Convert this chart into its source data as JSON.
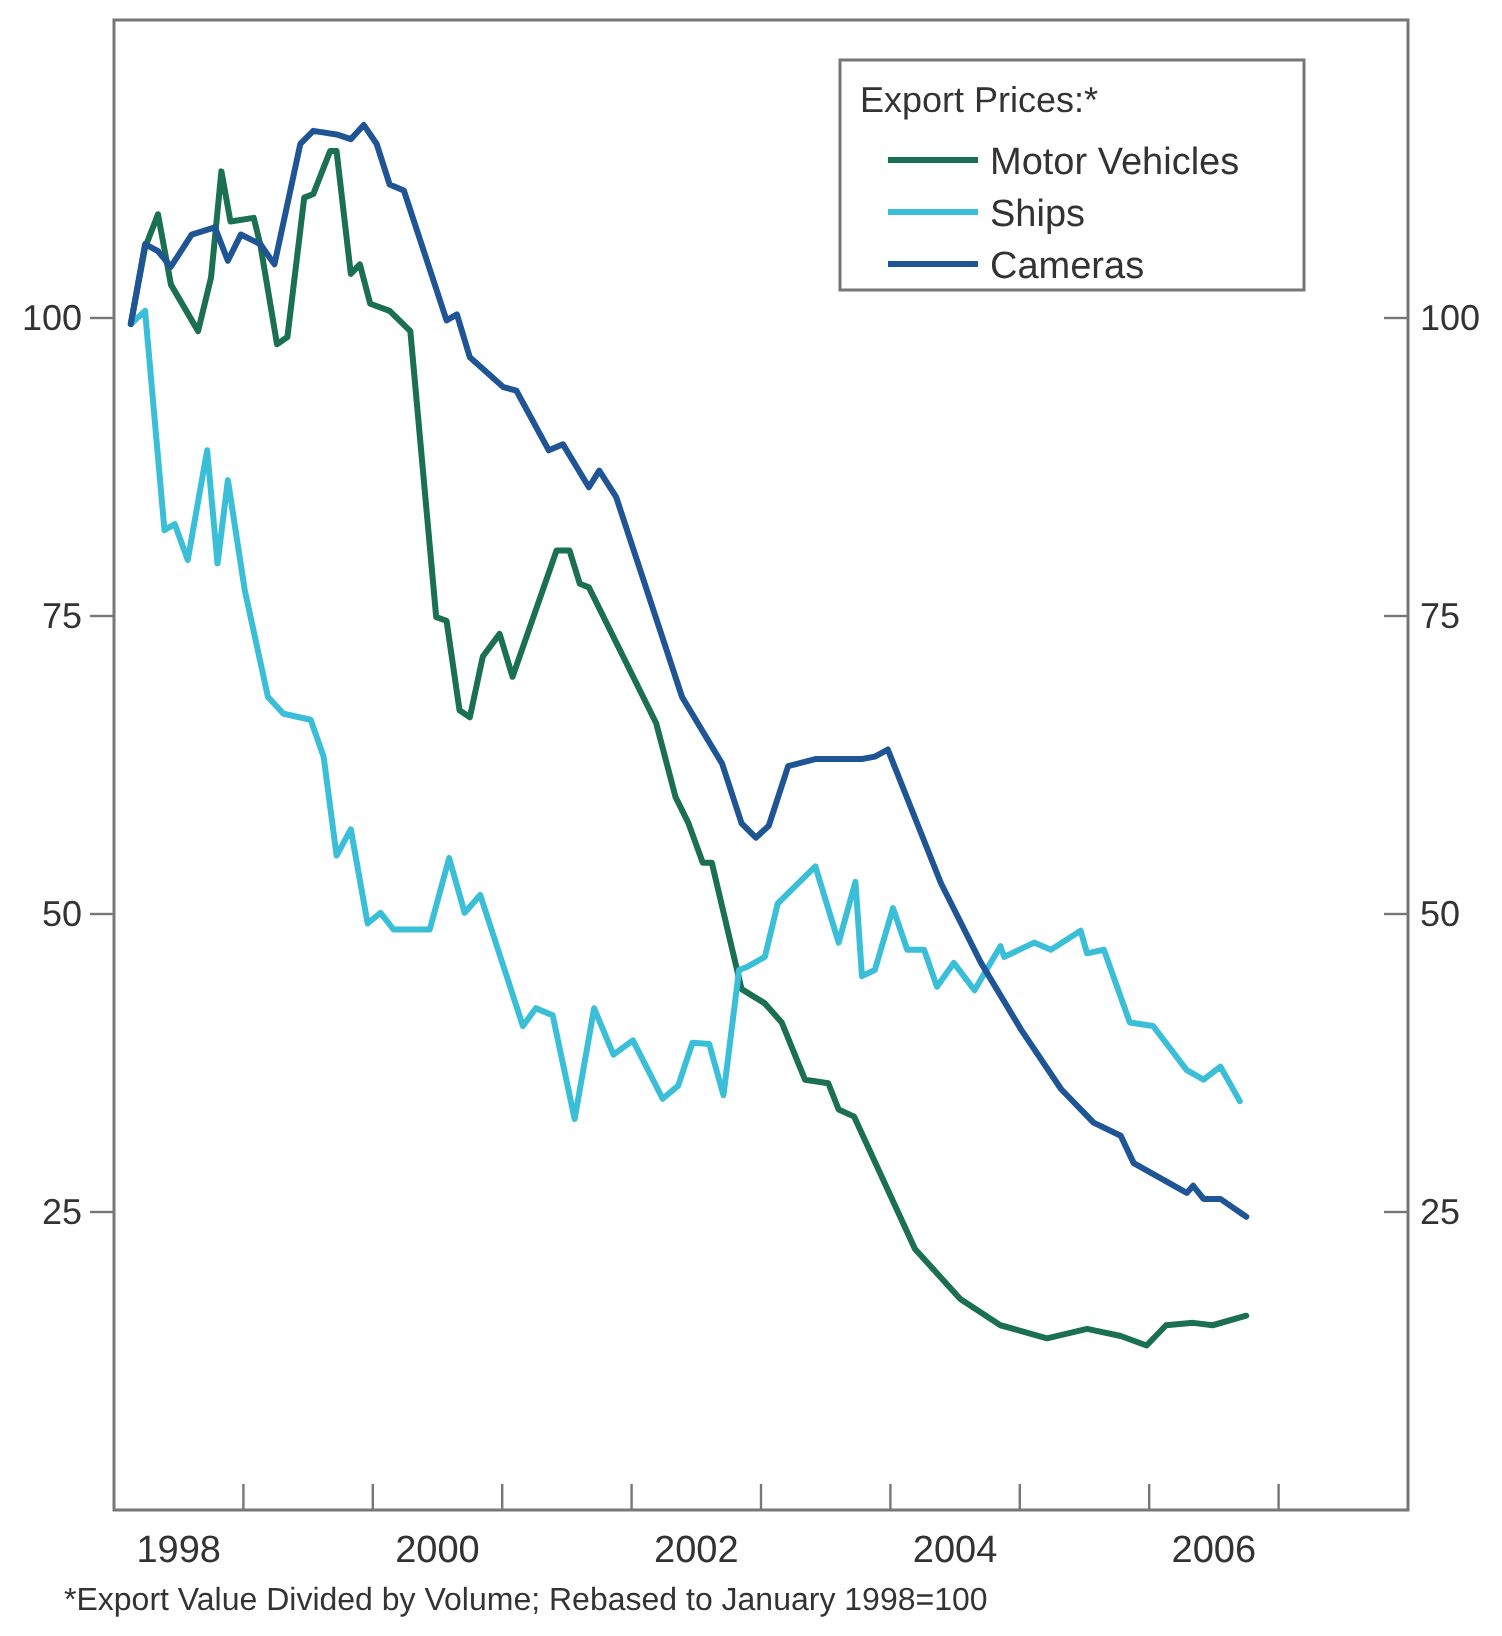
{
  "chart_data": {
    "type": "line",
    "legend_title": "Export Prices:*",
    "legend": "top right",
    "grid": false,
    "line_style": "solid",
    "marker": "none",
    "xlim": [
      1998,
      2008
    ],
    "xticks": [
      {
        "value": 1998.5,
        "label": "1998"
      },
      {
        "value": 1999,
        "label": null
      },
      {
        "value": 2000,
        "label": null
      },
      {
        "value": 2000.5,
        "label": "2000"
      },
      {
        "value": 2001,
        "label": null
      },
      {
        "value": 2002,
        "label": null
      },
      {
        "value": 2002.5,
        "label": "2002"
      },
      {
        "value": 2003,
        "label": null
      },
      {
        "value": 2004,
        "label": null
      },
      {
        "value": 2004.5,
        "label": "2004"
      },
      {
        "value": 2005,
        "label": null
      },
      {
        "value": 2006,
        "label": null
      },
      {
        "value": 2006.5,
        "label": "2006"
      },
      {
        "value": 2007,
        "label": null
      }
    ],
    "ylim": [
      0,
      125
    ],
    "yticks": [
      25,
      50,
      75,
      100
    ],
    "y2lim": [
      0,
      125
    ],
    "y2ticks": [
      25,
      50,
      75,
      100
    ],
    "annotations": [
      "*Export Value Divided by Volume; Rebased to January 1998=100"
    ],
    "series": [
      {
        "name": "Motor Vehicles",
        "color": "#1a7050",
        "x": [
          1998.13,
          1998.24,
          1998.34,
          1998.44,
          1998.65,
          1998.75,
          1998.83,
          1998.9,
          1999.08,
          1999.13,
          1999.26,
          1999.34,
          1999.47,
          1999.54,
          1999.67,
          1999.72,
          1999.83,
          1999.9,
          1999.98,
          2000.13,
          2000.29,
          2000.49,
          2000.57,
          2000.67,
          2000.75,
          2000.85,
          2000.98,
          2001.08,
          2001.42,
          2001.52,
          2001.6,
          2001.67,
          2002.19,
          2002.34,
          2002.44,
          2002.55,
          2002.62,
          2002.85,
          2003.03,
          2003.16,
          2003.34,
          2003.52,
          2003.6,
          2003.72,
          2004.19,
          2004.54,
          2004.85,
          2005.21,
          2005.52,
          2005.78,
          2005.98,
          2006.13,
          2006.34,
          2006.49,
          2006.75
        ],
        "values": [
          99.5,
          105.9,
          108.7,
          102.8,
          98.9,
          103.4,
          112.3,
          108.1,
          108.4,
          106.2,
          97.8,
          98.4,
          110.1,
          110.4,
          114.0,
          114.0,
          103.7,
          104.5,
          101.2,
          100.6,
          98.9,
          74.9,
          74.6,
          67.1,
          66.5,
          71.6,
          73.5,
          69.9,
          80.5,
          80.5,
          77.7,
          77.4,
          66.0,
          59.8,
          57.6,
          54.3,
          54.3,
          43.7,
          42.5,
          40.9,
          36.1,
          35.8,
          33.6,
          33.0,
          21.9,
          17.7,
          15.5,
          14.4,
          15.2,
          14.6,
          13.8,
          15.5,
          15.7,
          15.5,
          16.3
        ]
      },
      {
        "name": "Ships",
        "color": "#3bbfd8",
        "x": [
          1998.13,
          1998.24,
          1998.39,
          1998.47,
          1998.57,
          1998.72,
          1998.8,
          1998.88,
          1999.01,
          1999.19,
          1999.31,
          1999.52,
          1999.62,
          1999.72,
          1999.83,
          1999.96,
          2000.06,
          2000.16,
          2000.44,
          2000.59,
          2000.71,
          2000.83,
          2001.16,
          2001.26,
          2001.39,
          2001.56,
          2001.71,
          2001.86,
          2002.01,
          2002.24,
          2002.36,
          2002.47,
          2002.6,
          2002.71,
          2002.83,
          2002.9,
          2003.03,
          2003.13,
          2003.42,
          2003.6,
          2003.73,
          2003.78,
          2003.88,
          2004.02,
          2004.13,
          2004.26,
          2004.36,
          2004.49,
          2004.65,
          2004.85,
          2004.88,
          2005.11,
          2005.24,
          2005.47,
          2005.52,
          2005.65,
          2005.85,
          2006.03,
          2006.29,
          2006.42,
          2006.55,
          2006.7
        ],
        "values": [
          99.5,
          100.6,
          82.2,
          82.7,
          79.7,
          88.9,
          79.4,
          86.4,
          77.2,
          68.2,
          66.8,
          66.3,
          63.2,
          54.9,
          57.1,
          49.2,
          50.1,
          48.7,
          48.7,
          54.7,
          50.1,
          51.6,
          40.6,
          42.1,
          41.5,
          32.8,
          42.1,
          38.2,
          39.4,
          34.5,
          35.6,
          39.2,
          39.1,
          34.8,
          45.3,
          45.6,
          46.4,
          50.9,
          54.0,
          47.6,
          52.7,
          44.8,
          45.3,
          50.5,
          47.0,
          47.0,
          43.9,
          45.9,
          43.6,
          47.3,
          46.4,
          47.6,
          47.0,
          48.6,
          46.7,
          47.0,
          40.9,
          40.6,
          36.9,
          36.1,
          37.2,
          34.3
        ]
      },
      {
        "name": "Cameras",
        "color": "#1f5595",
        "x": [
          1998.13,
          1998.24,
          1998.34,
          1998.44,
          1998.6,
          1998.78,
          1998.88,
          1998.98,
          1999.13,
          1999.24,
          1999.44,
          1999.54,
          1999.72,
          1999.83,
          1999.93,
          2000.03,
          2000.13,
          2000.24,
          2000.57,
          2000.65,
          2000.75,
          2001.01,
          2001.11,
          2001.36,
          2001.47,
          2001.67,
          2001.75,
          2001.88,
          2002.39,
          2002.7,
          2002.85,
          2002.96,
          2003.06,
          2003.21,
          2003.42,
          2003.78,
          2003.88,
          2003.98,
          2004.39,
          2004.7,
          2005.01,
          2005.32,
          2005.57,
          2005.78,
          2005.88,
          2006.29,
          2006.34,
          2006.42,
          2006.55,
          2006.75
        ],
        "values": [
          99.5,
          106.2,
          105.6,
          104.3,
          107.0,
          107.6,
          104.8,
          107.0,
          106.2,
          104.5,
          114.6,
          115.7,
          115.4,
          115.0,
          116.2,
          114.6,
          111.2,
          110.7,
          99.8,
          100.3,
          96.7,
          94.2,
          93.9,
          88.9,
          89.4,
          85.8,
          87.2,
          85.0,
          68.2,
          62.6,
          57.6,
          56.4,
          57.4,
          62.4,
          63.0,
          63.0,
          63.2,
          63.8,
          52.6,
          45.9,
          40.3,
          35.3,
          32.5,
          31.4,
          29.1,
          26.6,
          27.2,
          26.1,
          26.1,
          24.6
        ]
      }
    ]
  }
}
